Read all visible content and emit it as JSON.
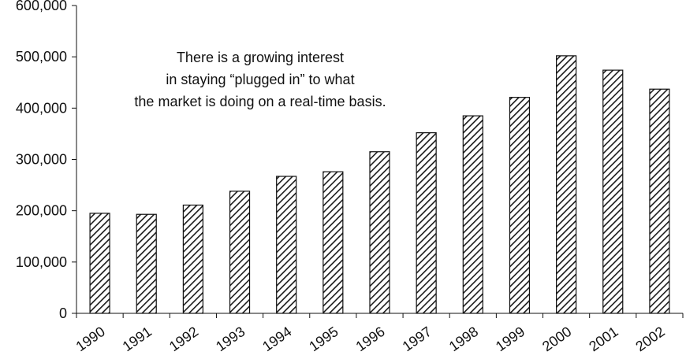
{
  "chart_data": {
    "type": "bar",
    "categories": [
      "1990",
      "1991",
      "1992",
      "1993",
      "1994",
      "1995",
      "1996",
      "1997",
      "1998",
      "1999",
      "2000",
      "2001",
      "2002"
    ],
    "values": [
      195000,
      193000,
      211000,
      238000,
      267000,
      276000,
      315000,
      352000,
      385000,
      421000,
      502000,
      474000,
      437000
    ],
    "ylim": [
      0,
      600000
    ],
    "yticks": [
      "0",
      "100,000",
      "200,000",
      "300,000",
      "400,000",
      "500,000",
      "600,000"
    ],
    "annotation": [
      "There is a growing interest",
      "in staying “plugged in” to what",
      "the market is doing on a real-time basis."
    ],
    "bar_fill": "hatched-diagonal",
    "bar_stroke": "#111111",
    "grid": false,
    "legend": "none"
  }
}
